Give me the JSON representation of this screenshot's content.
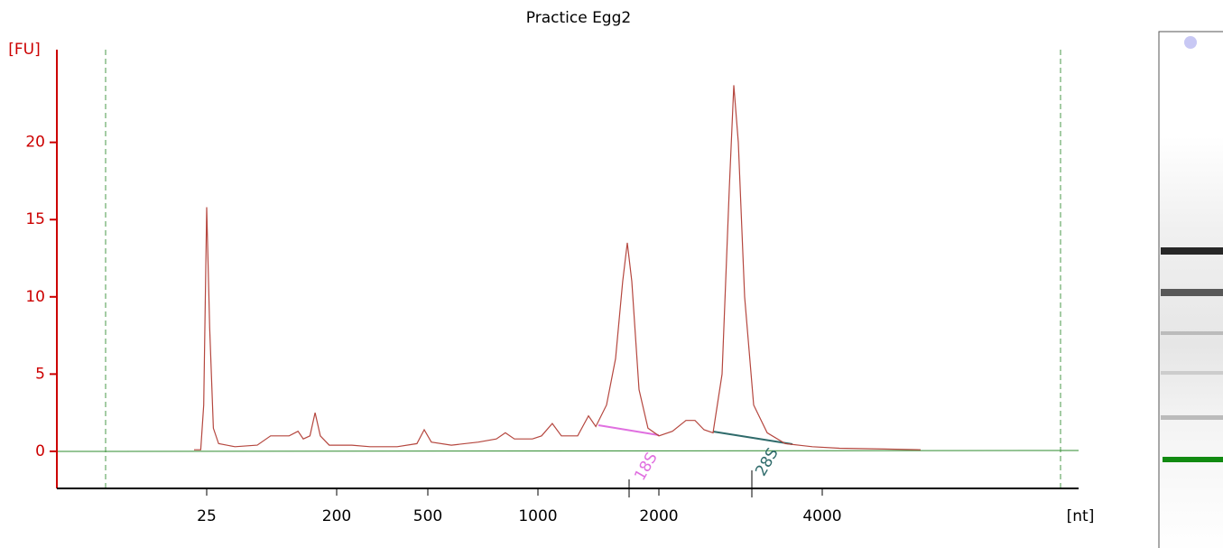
{
  "chart_data": {
    "type": "line",
    "title": "Practice Egg2",
    "y_label": "[FU]",
    "x_label": "[nt]",
    "color": "#b5473f",
    "x": [
      8,
      17,
      21,
      25,
      29,
      34,
      41,
      63,
      93,
      111,
      136,
      148,
      155,
      164,
      171,
      178,
      190,
      200,
      250,
      310,
      399,
      464,
      488,
      516,
      607,
      730,
      811,
      852,
      893,
      975,
      1030,
      1119,
      1194,
      1328,
      1418,
      1478,
      1567,
      1642,
      1701,
      1739,
      1776,
      1836,
      1910,
      2000,
      2166,
      2332,
      2442,
      2553,
      2663,
      2774,
      2862,
      2917,
      2972,
      3050,
      3160,
      3326,
      3547,
      3878,
      4210,
      4762,
      5204
    ],
    "values": [
      0.1,
      0.1,
      3,
      15.8,
      8,
      1.5,
      0.5,
      0.3,
      0.4,
      1,
      1,
      1.3,
      0.8,
      1,
      2.5,
      1,
      0.4,
      0.4,
      0.4,
      0.3,
      0.3,
      0.5,
      1.4,
      0.6,
      0.4,
      0.6,
      0.8,
      1.2,
      0.8,
      0.8,
      1,
      1.8,
      1,
      1,
      2.3,
      1.6,
      3,
      6,
      11,
      13.5,
      11,
      4,
      1.5,
      1,
      1.3,
      2,
      2,
      1.4,
      1.2,
      5,
      17,
      23.7,
      20,
      10,
      3,
      1.2,
      0.5,
      0.3,
      0.2,
      0.15,
      0.1
    ],
    "ylim": [
      -2.4,
      26
    ],
    "yticks": [
      0,
      5,
      10,
      15,
      20
    ],
    "xticks": [
      25,
      200,
      500,
      1000,
      2000,
      4000
    ],
    "annotations": [
      {
        "text": "18S",
        "color": "#e070e0"
      },
      {
        "text": "28S",
        "color": "#2f6b6b"
      }
    ]
  }
}
